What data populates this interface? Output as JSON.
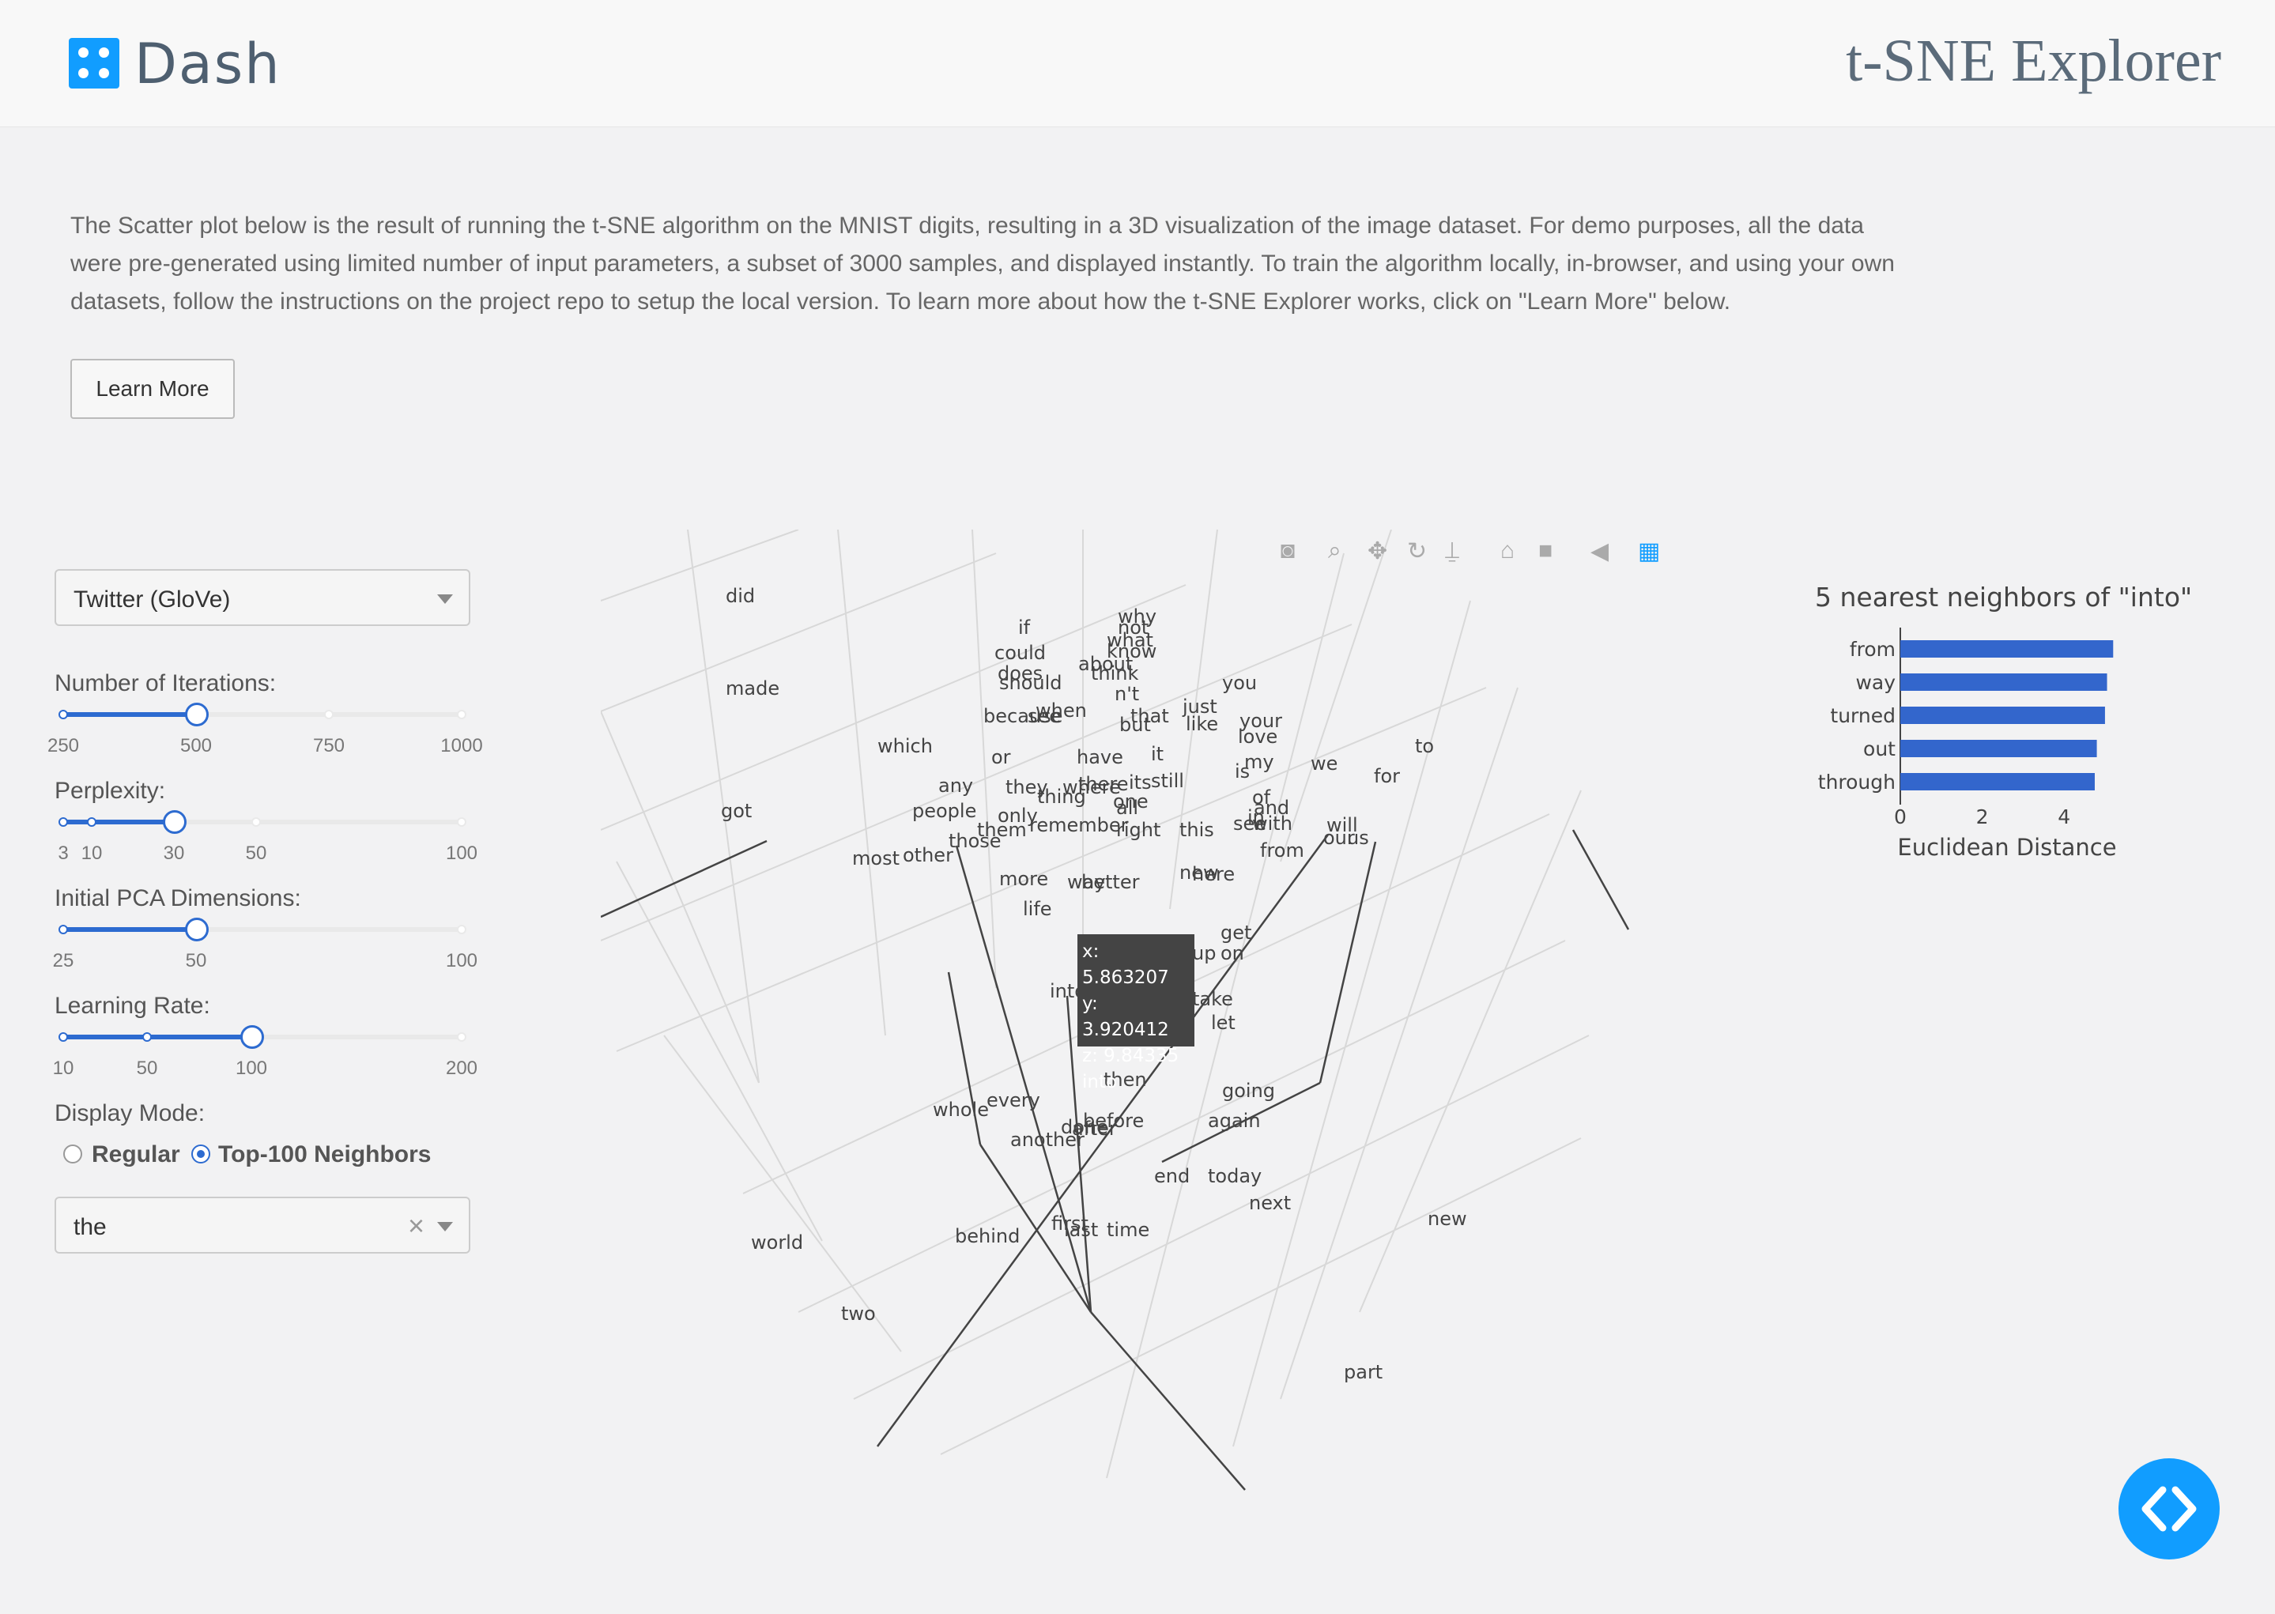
{
  "header": {
    "logo_text": "Dash",
    "title": "t-SNE Explorer"
  },
  "intro_text": "The Scatter plot below is the result of running the t-SNE algorithm on the MNIST digits, resulting in a 3D visualization of the image dataset. For demo purposes, all the data were pre-generated using limited number of input parameters, a subset of 3000 samples, and displayed instantly. To train the algorithm locally, in-browser, and using your own datasets, follow the instructions on the project repo to setup the local version. To learn more about how the t-SNE Explorer works, click on \"Learn More\" below.",
  "learn_more_label": "Learn More",
  "controls": {
    "dataset": {
      "value": "Twitter (GloVe)"
    },
    "iterations": {
      "label": "Number of Iterations:",
      "marks": [
        "250",
        "500",
        "750",
        "1000"
      ],
      "value": "500"
    },
    "perplexity": {
      "label": "Perplexity:",
      "marks": [
        "3",
        "10",
        "30",
        "50",
        "100"
      ],
      "value": "30"
    },
    "pca": {
      "label": "Initial PCA Dimensions:",
      "marks": [
        "25",
        "50",
        "100"
      ],
      "value": "50"
    },
    "learning_rate": {
      "label": "Learning Rate:",
      "marks": [
        "10",
        "50",
        "100",
        "200"
      ],
      "value": "100"
    },
    "display_mode": {
      "label": "Display Mode:",
      "options": [
        "Regular",
        "Top-100 Neighbors"
      ],
      "selected": "Top-100 Neighbors"
    },
    "word_search": {
      "value": "the"
    }
  },
  "modebar": {
    "icons": [
      "camera-icon",
      "zoom-icon",
      "pan-icon",
      "orbit-icon",
      "turntable-icon",
      "home-icon",
      "video-camera-icon",
      "hover-tag-icon",
      "plotly-logo-icon"
    ]
  },
  "scatter_words": [
    "did",
    "made",
    "got",
    "which",
    "if",
    "could",
    "does",
    "should",
    "why",
    "not",
    "what",
    "know",
    "about",
    "think",
    "n't",
    "because",
    "see",
    "when",
    "that",
    "but",
    "just",
    "like",
    "you",
    "your",
    "love",
    "my",
    "is",
    "we",
    "for",
    "to",
    "or",
    "have",
    "it",
    "any",
    "they",
    "thing",
    "where",
    "there",
    "its",
    "still",
    "one",
    "all",
    "and",
    "of",
    "in",
    "with",
    "see",
    "people",
    "only",
    "them",
    "remember",
    "those",
    "right",
    "this",
    "will",
    "our",
    "us",
    "from",
    "most",
    "other",
    "more",
    "way",
    "better",
    "new",
    "here",
    "life",
    "get",
    "on",
    "up",
    "take",
    "let",
    "then",
    "going",
    "again",
    "whole",
    "every",
    "another",
    "done",
    "after",
    "before",
    "end",
    "today",
    "next",
    "new",
    "behind",
    "first",
    "last",
    "time",
    "world",
    "two",
    "part"
  ],
  "tooltip": {
    "x": "x: 5.863207",
    "y": "y: 3.920412",
    "z": "z: 9.84335",
    "word": "into"
  },
  "chart_data": {
    "type": "bar",
    "title": "5 nearest neighbors of \"into\"",
    "orientation": "horizontal",
    "categories": [
      "from",
      "way",
      "turned",
      "out",
      "through"
    ],
    "values": [
      5.2,
      5.05,
      5.0,
      4.8,
      4.75
    ],
    "xlabel": "Euclidean Distance",
    "xticks": [
      "0",
      "2",
      "4"
    ],
    "xlim": [
      0,
      5.6
    ],
    "bar_color": "#3366cc"
  }
}
